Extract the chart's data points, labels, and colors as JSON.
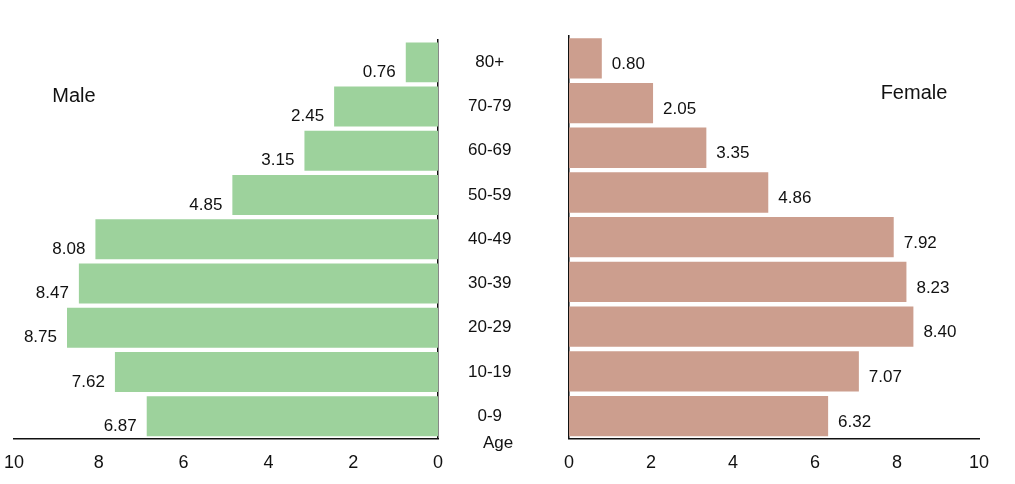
{
  "chart_data": [
    {
      "type": "bar",
      "orientation": "horizontal",
      "categories": [
        "80+",
        "70-79",
        "60-69",
        "50-59",
        "40-49",
        "30-39",
        "20-29",
        "10-19",
        "0-9"
      ],
      "series": [
        {
          "name": "Male",
          "color": "#9dd29c",
          "values": [
            0.76,
            2.45,
            3.15,
            4.85,
            8.08,
            8.47,
            8.75,
            7.62,
            6.87
          ],
          "value_labels": [
            "0.76",
            "2.45",
            "3.15",
            "4.85",
            "8.08",
            "8.47",
            "8.75",
            "7.62",
            "6.87"
          ]
        }
      ],
      "xlim": [
        10,
        0
      ],
      "xticks": [
        10,
        8,
        6,
        4,
        2,
        0
      ],
      "grid": false,
      "legend": false,
      "annotations": [
        "Age"
      ]
    },
    {
      "type": "bar",
      "orientation": "horizontal",
      "categories": [
        null,
        null,
        null,
        null,
        null,
        null,
        null,
        null,
        null
      ],
      "series": [
        {
          "name": "Female",
          "color": "#cc9e8e",
          "values": [
            0.8,
            2.05,
            3.35,
            4.86,
            7.92,
            8.23,
            8.4,
            7.07,
            6.32
          ],
          "value_labels": [
            "0.80",
            "2.05",
            "3.35",
            "4.86",
            "7.92",
            "8.23",
            "8.40",
            "7.07",
            "6.32"
          ]
        }
      ],
      "xlim": [
        0,
        10
      ],
      "xticks": [
        0,
        2,
        4,
        6,
        8,
        10
      ],
      "tick_labels": "x",
      "grid": false,
      "legend": false
    }
  ]
}
